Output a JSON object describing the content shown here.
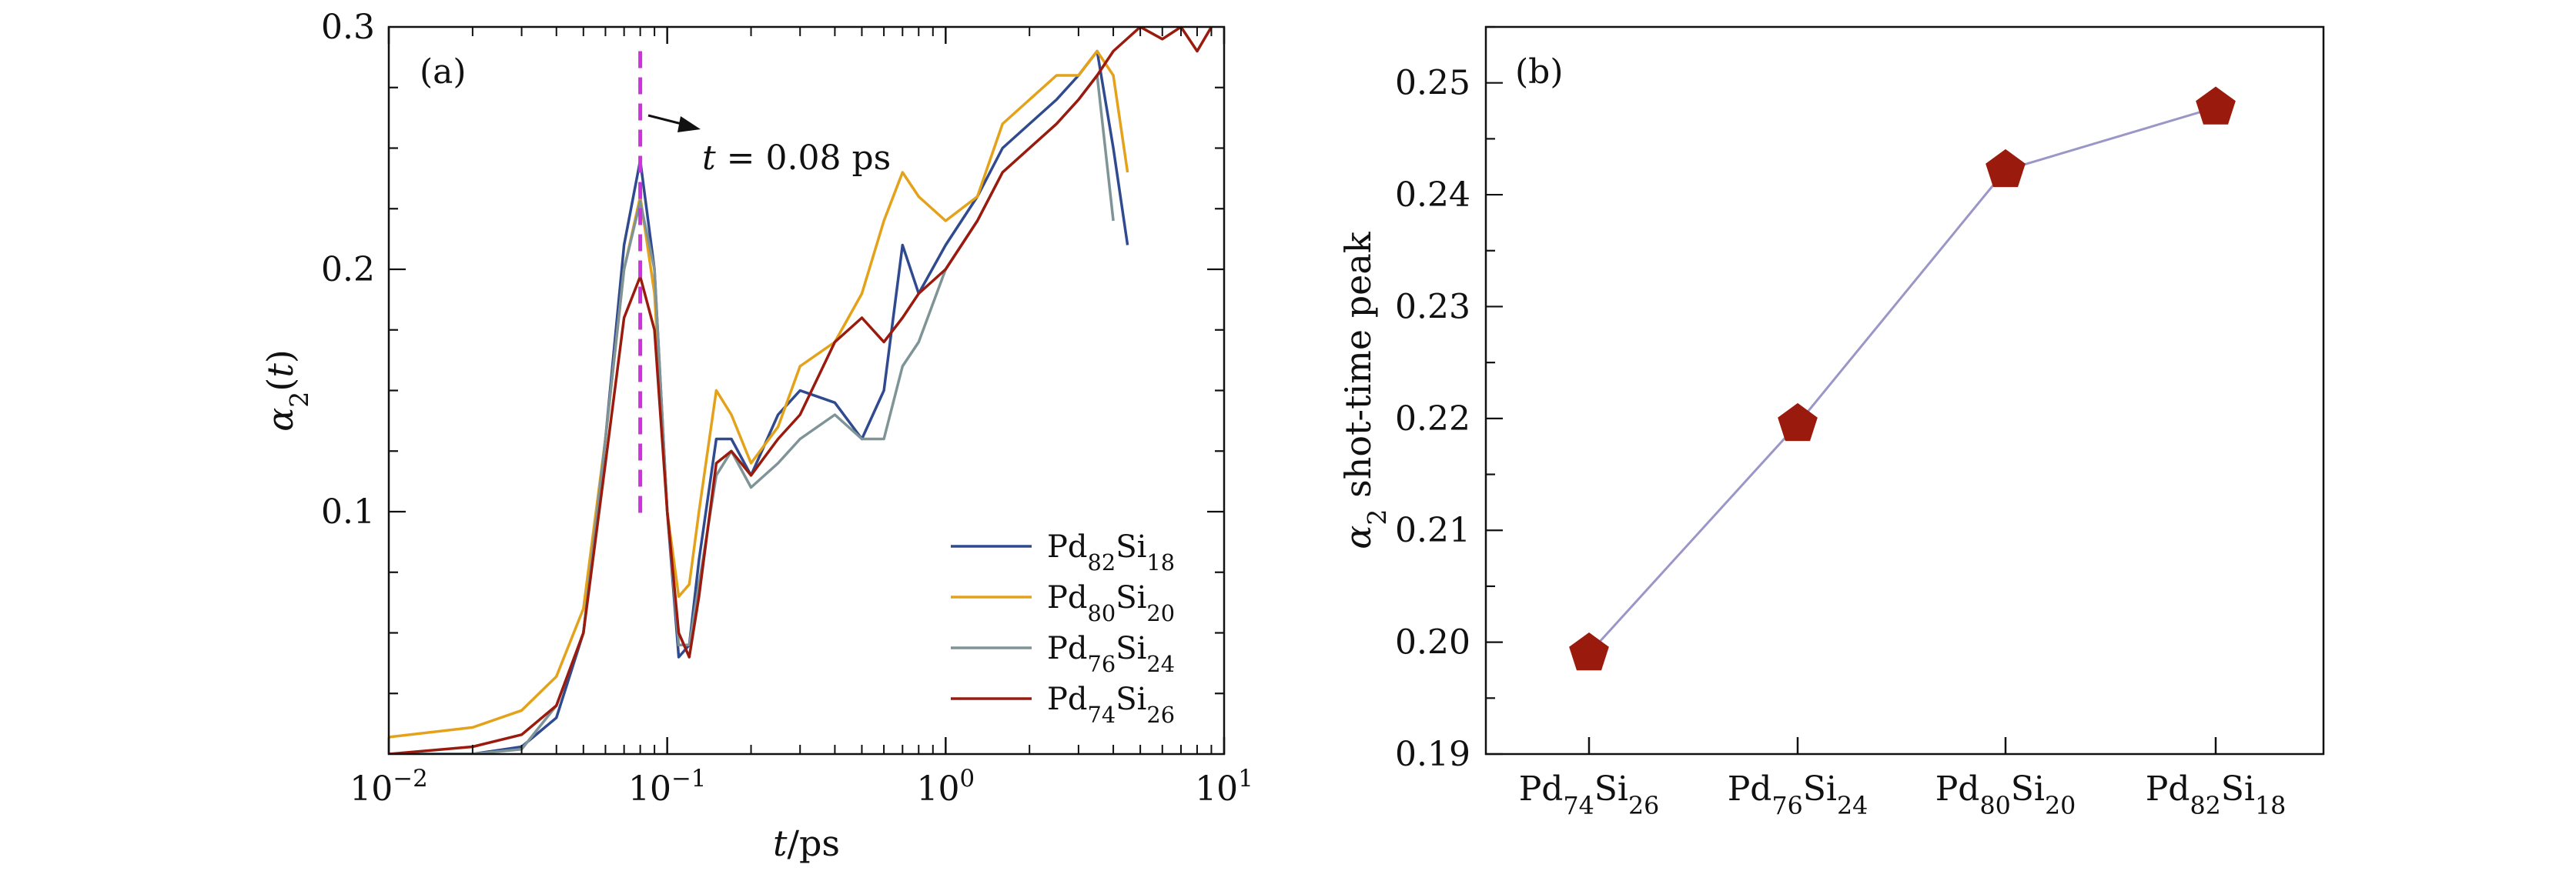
{
  "colors": {
    "Pd82Si18": "#2f4a8f",
    "Pd80Si20": "#e3a21a",
    "Pd76Si24": "#7f9496",
    "Pd74Si26": "#9a1b0e",
    "marker_line": "#9a96c8",
    "marker_fill": "#9a1b0e",
    "annot_line": "#cc33dd"
  },
  "chart_data": [
    {
      "type": "line",
      "panel_label": "(a)",
      "xlabel": "t/ps",
      "ylabel": "α2(t)",
      "xscale": "log",
      "xlim": [
        0.01,
        10
      ],
      "ylim": [
        0,
        0.3
      ],
      "x_ticks": [
        {
          "value": 0.01,
          "base": "10",
          "exp": "−2"
        },
        {
          "value": 0.1,
          "base": "10",
          "exp": "−1"
        },
        {
          "value": 1,
          "base": "10",
          "exp": "0"
        },
        {
          "value": 10,
          "base": "10",
          "exp": "1"
        }
      ],
      "y_ticks": [
        {
          "value": 0.1,
          "label": "0.1"
        },
        {
          "value": 0.2,
          "label": "0.2"
        },
        {
          "value": 0.3,
          "label": "0.3"
        }
      ],
      "annotation": {
        "x": 0.08,
        "text": "t = 0.08 ps"
      },
      "legend": {
        "placement": "lower-right"
      },
      "series": [
        {
          "key": "Pd82Si18",
          "name_base": "Pd",
          "name_sub1": "82",
          "name_mid": "Si",
          "name_sub2": "18",
          "x": [
            0.01,
            0.02,
            0.03,
            0.04,
            0.05,
            0.06,
            0.07,
            0.08,
            0.09,
            0.1,
            0.11,
            0.12,
            0.13,
            0.15,
            0.17,
            0.2,
            0.25,
            0.3,
            0.4,
            0.5,
            0.6,
            0.7,
            0.8,
            1.0,
            1.3,
            1.6,
            2.0,
            2.5,
            3.0,
            3.5,
            4.0,
            4.5
          ],
          "y": [
            0.0,
            0.0,
            0.003,
            0.015,
            0.05,
            0.13,
            0.21,
            0.245,
            0.2,
            0.1,
            0.04,
            0.045,
            0.08,
            0.13,
            0.13,
            0.115,
            0.14,
            0.15,
            0.145,
            0.13,
            0.15,
            0.21,
            0.19,
            0.21,
            0.23,
            0.25,
            0.26,
            0.27,
            0.28,
            0.29,
            0.25,
            0.21
          ]
        },
        {
          "key": "Pd80Si20",
          "name_base": "Pd",
          "name_sub1": "80",
          "name_mid": "Si",
          "name_sub2": "20",
          "x": [
            0.01,
            0.02,
            0.03,
            0.04,
            0.05,
            0.06,
            0.07,
            0.08,
            0.09,
            0.1,
            0.11,
            0.12,
            0.13,
            0.15,
            0.17,
            0.2,
            0.25,
            0.3,
            0.4,
            0.5,
            0.6,
            0.7,
            0.8,
            1.0,
            1.3,
            1.6,
            2.0,
            2.5,
            3.0,
            3.5,
            4.0,
            4.5
          ],
          "y": [
            0.007,
            0.011,
            0.018,
            0.032,
            0.06,
            0.13,
            0.2,
            0.23,
            0.19,
            0.1,
            0.065,
            0.07,
            0.1,
            0.15,
            0.14,
            0.12,
            0.135,
            0.16,
            0.17,
            0.19,
            0.22,
            0.24,
            0.23,
            0.22,
            0.23,
            0.26,
            0.27,
            0.28,
            0.28,
            0.29,
            0.28,
            0.24
          ]
        },
        {
          "key": "Pd76Si24",
          "name_base": "Pd",
          "name_sub1": "76",
          "name_mid": "Si",
          "name_sub2": "24",
          "x": [
            0.01,
            0.02,
            0.03,
            0.04,
            0.05,
            0.06,
            0.07,
            0.08,
            0.09,
            0.1,
            0.11,
            0.12,
            0.13,
            0.15,
            0.17,
            0.2,
            0.25,
            0.3,
            0.4,
            0.5,
            0.6,
            0.7,
            0.8,
            1.0,
            1.3,
            1.6,
            2.0,
            2.5,
            3.0,
            3.5,
            4.0
          ],
          "y": [
            0.0,
            0.0,
            0.002,
            0.02,
            0.05,
            0.13,
            0.2,
            0.228,
            0.2,
            0.1,
            0.045,
            0.045,
            0.07,
            0.115,
            0.125,
            0.11,
            0.12,
            0.13,
            0.14,
            0.13,
            0.13,
            0.16,
            0.17,
            0.2,
            0.22,
            0.24,
            0.25,
            0.26,
            0.27,
            0.28,
            0.22
          ]
        },
        {
          "key": "Pd74Si26",
          "name_base": "Pd",
          "name_sub1": "74",
          "name_mid": "Si",
          "name_sub2": "26",
          "x": [
            0.01,
            0.02,
            0.03,
            0.04,
            0.05,
            0.06,
            0.07,
            0.08,
            0.09,
            0.1,
            0.11,
            0.12,
            0.13,
            0.15,
            0.17,
            0.2,
            0.25,
            0.3,
            0.4,
            0.5,
            0.6,
            0.7,
            0.8,
            1.0,
            1.3,
            1.6,
            2.0,
            2.5,
            3.0,
            3.5,
            4.0,
            5.0,
            6.0,
            7.0,
            8.0,
            9.0
          ],
          "y": [
            0.0,
            0.003,
            0.008,
            0.02,
            0.05,
            0.12,
            0.18,
            0.197,
            0.175,
            0.1,
            0.05,
            0.04,
            0.065,
            0.12,
            0.125,
            0.115,
            0.13,
            0.14,
            0.17,
            0.18,
            0.17,
            0.18,
            0.19,
            0.2,
            0.22,
            0.24,
            0.25,
            0.26,
            0.27,
            0.28,
            0.29,
            0.3,
            0.295,
            0.3,
            0.29,
            0.3
          ]
        }
      ]
    },
    {
      "type": "line",
      "panel_label": "(b)",
      "ylabel_prefix": "α2",
      "ylabel_text": "shot-time peak",
      "ylim": [
        0.19,
        0.255
      ],
      "y_ticks": [
        {
          "value": 0.19,
          "label": "0.19"
        },
        {
          "value": 0.2,
          "label": "0.20"
        },
        {
          "value": 0.21,
          "label": "0.21"
        },
        {
          "value": 0.22,
          "label": "0.22"
        },
        {
          "value": 0.23,
          "label": "0.23"
        },
        {
          "value": 0.24,
          "label": "0.24"
        },
        {
          "value": 0.25,
          "label": "0.25"
        }
      ],
      "marker": "pentagon",
      "categories": [
        {
          "base": "Pd",
          "sub1": "74",
          "mid": "Si",
          "sub2": "26"
        },
        {
          "base": "Pd",
          "sub1": "76",
          "mid": "Si",
          "sub2": "24"
        },
        {
          "base": "Pd",
          "sub1": "80",
          "mid": "Si",
          "sub2": "20"
        },
        {
          "base": "Pd",
          "sub1": "82",
          "mid": "Si",
          "sub2": "18"
        }
      ],
      "values": [
        0.199,
        0.2195,
        0.2422,
        0.2478
      ]
    }
  ]
}
